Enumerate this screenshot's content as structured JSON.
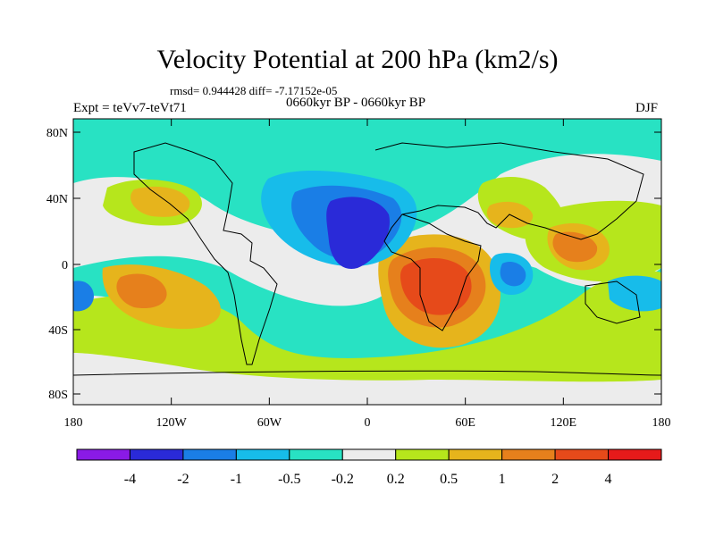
{
  "title": "Velocity Potential at 200 hPa (km2/s)",
  "stats_line": "rmsd= 0.944428 diff= -7.17152e-05",
  "experiment_label": "Expt = teVv7-teVt71",
  "period_label": "0660kyr BP - 0660kyr BP",
  "season_label": "DJF",
  "lat_ticks": [
    "80N",
    "40N",
    "0",
    "40S",
    "80S"
  ],
  "lon_ticks": [
    "180",
    "120W",
    "60W",
    "0",
    "60E",
    "120E",
    "180"
  ],
  "colorbar": {
    "colors": [
      "#8a1ae6",
      "#2a2ad8",
      "#1a7ee6",
      "#17bcea",
      "#28e2c3",
      "#ececec",
      "#b6e61c",
      "#e6b41c",
      "#e6801c",
      "#e64a1a",
      "#e61a1a"
    ],
    "labels": [
      "-4",
      "-2",
      "-1",
      "-0.5",
      "-0.2",
      "0.2",
      "0.5",
      "1",
      "2",
      "4"
    ]
  }
}
